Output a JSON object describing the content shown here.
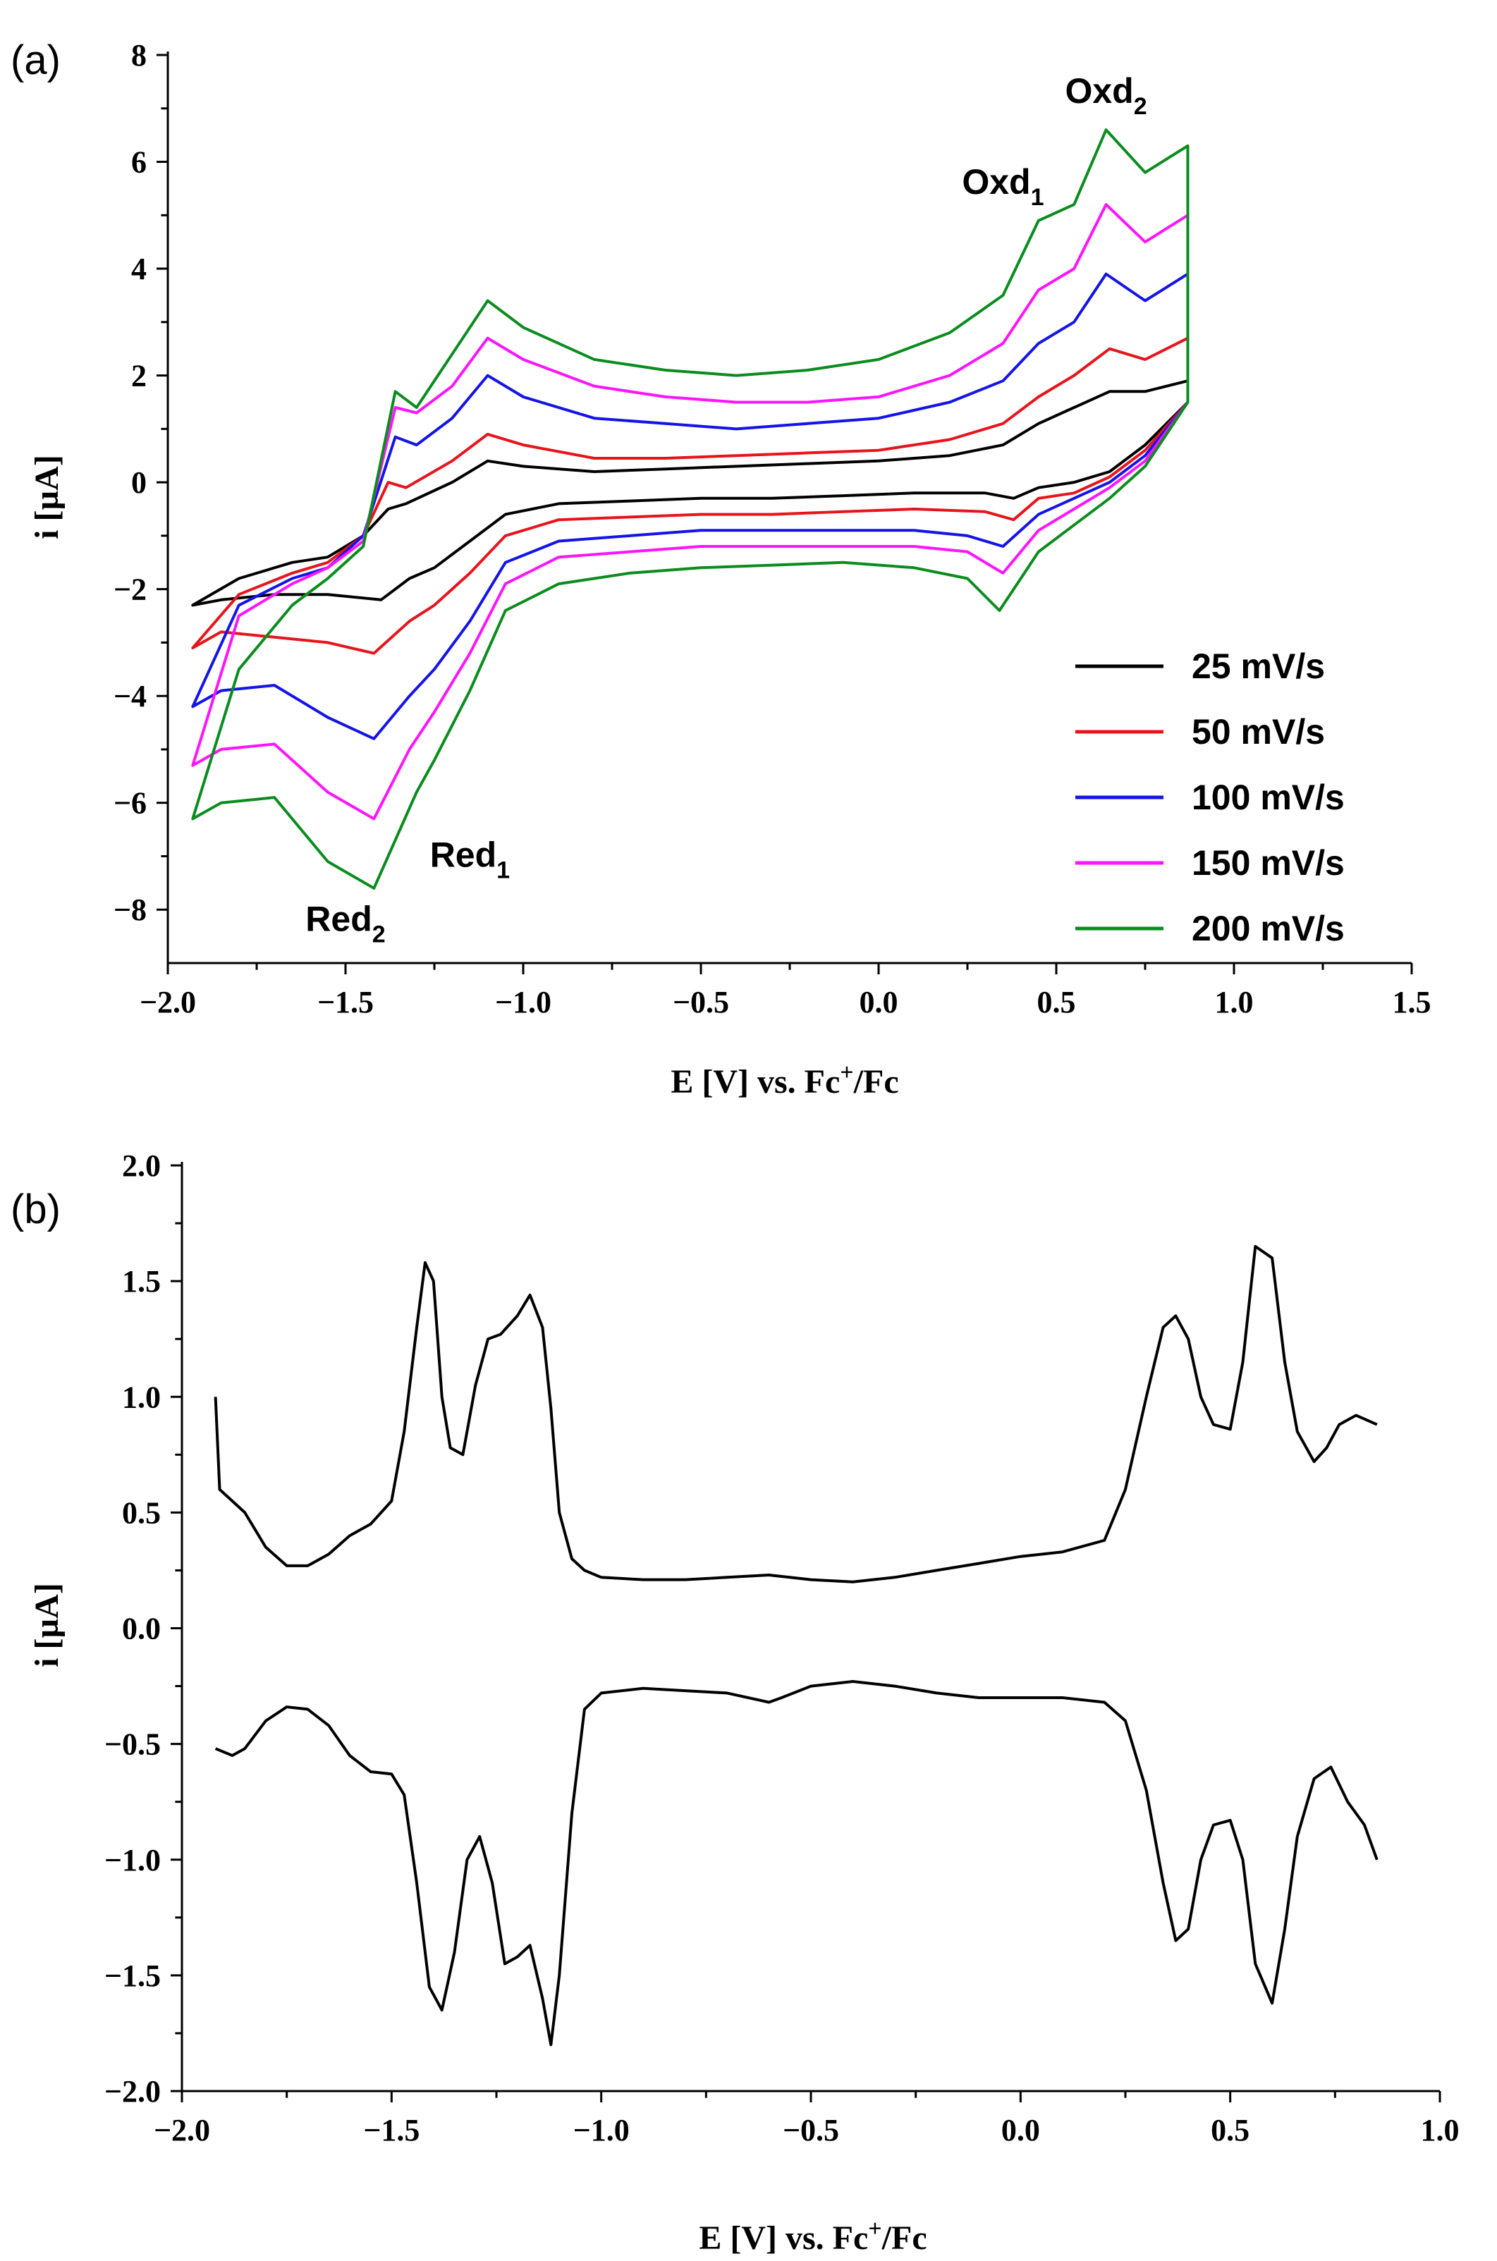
{
  "chart_data": [
    {
      "type": "line",
      "panel_label": "(a)",
      "xlabel": {
        "pre": "E [V] vs. Fc",
        "sup": "+",
        "post": "/Fc"
      },
      "ylabel": "i [µA]",
      "xlim": [
        -2.0,
        1.5
      ],
      "ylim": [
        -9,
        8
      ],
      "xticks": [
        -2.0,
        -1.5,
        -1.0,
        -0.5,
        0.0,
        0.5,
        1.0,
        1.5
      ],
      "xtick_labels": [
        "−2.0",
        "−1.5",
        "−1.0",
        "−0.5",
        "0.0",
        "0.5",
        "1.0",
        "1.5"
      ],
      "yticks": [
        -8,
        -6,
        -4,
        -2,
        0,
        2,
        4,
        6,
        8
      ],
      "ytick_labels": [
        "−8",
        "−6",
        "−4",
        "−2",
        "0",
        "2",
        "4",
        "6",
        "8"
      ],
      "legend_position": "bottom-right",
      "annotations": [
        {
          "base": "Oxd",
          "sub": "1",
          "x": 0.35,
          "y": 5.4
        },
        {
          "base": "Oxd",
          "sub": "2",
          "x": 0.64,
          "y": 7.1
        },
        {
          "base": "Red",
          "sub": "1",
          "x": -1.15,
          "y": -7.2
        },
        {
          "base": "Red",
          "sub": "2",
          "x": -1.5,
          "y": -8.4
        }
      ],
      "series": [
        {
          "name": "25 mV/s",
          "color": "#000000",
          "x": [
            -1.93,
            -1.8,
            -1.65,
            -1.55,
            -1.45,
            -1.38,
            -1.33,
            -1.2,
            -1.1,
            -1.0,
            -0.8,
            -0.6,
            -0.4,
            -0.2,
            0.0,
            0.2,
            0.35,
            0.45,
            0.55,
            0.65,
            0.75,
            0.87,
            0.87,
            0.75,
            0.65,
            0.55,
            0.45,
            0.38,
            0.3,
            0.1,
            -0.1,
            -0.3,
            -0.5,
            -0.7,
            -0.9,
            -1.05,
            -1.15,
            -1.25,
            -1.32,
            -1.4,
            -1.55,
            -1.7,
            -1.85,
            -1.93
          ],
          "y": [
            -2.3,
            -1.8,
            -1.5,
            -1.4,
            -1.0,
            -0.5,
            -0.4,
            0.0,
            0.4,
            0.3,
            0.2,
            0.25,
            0.3,
            0.35,
            0.4,
            0.5,
            0.7,
            1.1,
            1.4,
            1.7,
            1.7,
            1.9,
            1.5,
            0.7,
            0.2,
            0.0,
            -0.1,
            -0.3,
            -0.2,
            -0.2,
            -0.25,
            -0.3,
            -0.3,
            -0.35,
            -0.4,
            -0.6,
            -1.1,
            -1.6,
            -1.8,
            -2.2,
            -2.1,
            -2.1,
            -2.2,
            -2.3
          ]
        },
        {
          "name": "50 mV/s",
          "color": "#e8141c",
          "x": [
            -1.93,
            -1.8,
            -1.65,
            -1.55,
            -1.45,
            -1.38,
            -1.33,
            -1.2,
            -1.1,
            -1.0,
            -0.8,
            -0.6,
            -0.4,
            -0.2,
            0.0,
            0.2,
            0.35,
            0.45,
            0.55,
            0.65,
            0.75,
            0.87,
            0.87,
            0.75,
            0.65,
            0.55,
            0.45,
            0.38,
            0.3,
            0.1,
            -0.1,
            -0.3,
            -0.5,
            -0.7,
            -0.9,
            -1.05,
            -1.15,
            -1.25,
            -1.32,
            -1.42,
            -1.55,
            -1.7,
            -1.85,
            -1.93
          ],
          "y": [
            -3.1,
            -2.1,
            -1.7,
            -1.5,
            -1.0,
            0.0,
            -0.1,
            0.4,
            0.9,
            0.7,
            0.45,
            0.45,
            0.5,
            0.55,
            0.6,
            0.8,
            1.1,
            1.6,
            2.0,
            2.5,
            2.3,
            2.7,
            1.5,
            0.6,
            0.1,
            -0.2,
            -0.3,
            -0.7,
            -0.55,
            -0.5,
            -0.55,
            -0.6,
            -0.6,
            -0.65,
            -0.7,
            -1.0,
            -1.7,
            -2.3,
            -2.6,
            -3.2,
            -3.0,
            -2.9,
            -2.8,
            -3.1
          ]
        },
        {
          "name": "100 mV/s",
          "color": "#1414e8",
          "x": [
            -1.93,
            -1.8,
            -1.65,
            -1.55,
            -1.45,
            -1.36,
            -1.3,
            -1.2,
            -1.1,
            -1.0,
            -0.8,
            -0.6,
            -0.4,
            -0.2,
            0.0,
            0.2,
            0.35,
            0.45,
            0.55,
            0.64,
            0.75,
            0.87,
            0.87,
            0.75,
            0.65,
            0.55,
            0.45,
            0.35,
            0.25,
            0.1,
            -0.1,
            -0.3,
            -0.5,
            -0.7,
            -0.9,
            -1.05,
            -1.15,
            -1.25,
            -1.32,
            -1.42,
            -1.55,
            -1.7,
            -1.85,
            -1.93
          ],
          "y": [
            -4.2,
            -2.3,
            -1.8,
            -1.6,
            -1.0,
            0.85,
            0.7,
            1.2,
            2.0,
            1.6,
            1.2,
            1.1,
            1.0,
            1.1,
            1.2,
            1.5,
            1.9,
            2.6,
            3.0,
            3.9,
            3.4,
            3.9,
            1.5,
            0.5,
            0.0,
            -0.3,
            -0.6,
            -1.2,
            -1.0,
            -0.9,
            -0.9,
            -0.9,
            -0.9,
            -1.0,
            -1.1,
            -1.5,
            -2.6,
            -3.5,
            -4.0,
            -4.8,
            -4.4,
            -3.8,
            -3.9,
            -4.2
          ]
        },
        {
          "name": "150 mV/s",
          "color": "#ff14ff",
          "x": [
            -1.93,
            -1.8,
            -1.65,
            -1.55,
            -1.45,
            -1.36,
            -1.3,
            -1.2,
            -1.1,
            -1.0,
            -0.8,
            -0.6,
            -0.4,
            -0.2,
            0.0,
            0.2,
            0.35,
            0.45,
            0.55,
            0.64,
            0.75,
            0.87,
            0.87,
            0.75,
            0.65,
            0.55,
            0.45,
            0.35,
            0.25,
            0.1,
            -0.1,
            -0.3,
            -0.5,
            -0.7,
            -0.9,
            -1.05,
            -1.15,
            -1.25,
            -1.32,
            -1.42,
            -1.55,
            -1.7,
            -1.85,
            -1.93
          ],
          "y": [
            -5.3,
            -2.5,
            -1.9,
            -1.6,
            -1.1,
            1.4,
            1.3,
            1.8,
            2.7,
            2.3,
            1.8,
            1.6,
            1.5,
            1.5,
            1.6,
            2.0,
            2.6,
            3.6,
            4.0,
            5.2,
            4.5,
            5.0,
            1.5,
            0.4,
            -0.1,
            -0.5,
            -0.9,
            -1.7,
            -1.3,
            -1.2,
            -1.2,
            -1.2,
            -1.2,
            -1.3,
            -1.4,
            -1.9,
            -3.2,
            -4.3,
            -5.0,
            -6.3,
            -5.8,
            -4.9,
            -5.0,
            -5.3
          ]
        },
        {
          "name": "200 mV/s",
          "color": "#0a8c1e",
          "x": [
            -1.93,
            -1.8,
            -1.65,
            -1.55,
            -1.45,
            -1.36,
            -1.3,
            -1.2,
            -1.1,
            -1.0,
            -0.8,
            -0.6,
            -0.4,
            -0.2,
            0.0,
            0.2,
            0.35,
            0.45,
            0.55,
            0.64,
            0.75,
            0.87,
            0.87,
            0.75,
            0.65,
            0.55,
            0.45,
            0.34,
            0.25,
            0.1,
            -0.1,
            -0.3,
            -0.5,
            -0.7,
            -0.9,
            -1.05,
            -1.15,
            -1.25,
            -1.3,
            -1.42,
            -1.55,
            -1.7,
            -1.85,
            -1.93
          ],
          "y": [
            -6.3,
            -3.5,
            -2.3,
            -1.8,
            -1.2,
            1.7,
            1.4,
            2.4,
            3.4,
            2.9,
            2.3,
            2.1,
            2.0,
            2.1,
            2.3,
            2.8,
            3.5,
            4.9,
            5.2,
            6.6,
            5.8,
            6.3,
            1.5,
            0.3,
            -0.3,
            -0.8,
            -1.3,
            -2.4,
            -1.8,
            -1.6,
            -1.5,
            -1.55,
            -1.6,
            -1.7,
            -1.9,
            -2.4,
            -3.9,
            -5.2,
            -5.8,
            -7.6,
            -7.1,
            -5.9,
            -6.0,
            -6.3
          ]
        }
      ]
    },
    {
      "type": "line",
      "panel_label": "(b)",
      "xlabel": {
        "pre": "E [V] vs. Fc",
        "sup": "+",
        "post": "/Fc"
      },
      "ylabel": "i [µA]",
      "xlim": [
        -2.0,
        1.0
      ],
      "ylim": [
        -2.0,
        2.0
      ],
      "xticks": [
        -2.0,
        -1.5,
        -1.0,
        -0.5,
        0.0,
        0.5,
        1.0
      ],
      "xtick_labels": [
        "−2.0",
        "−1.5",
        "−1.0",
        "−0.5",
        "0.0",
        "0.5",
        "1.0"
      ],
      "yticks": [
        -2.0,
        -1.5,
        -1.0,
        -0.5,
        0.0,
        0.5,
        1.0,
        1.5,
        2.0
      ],
      "ytick_labels": [
        "−2.0",
        "−1.5",
        "−1.0",
        "−0.5",
        "0.0",
        "0.5",
        "1.0",
        "1.5",
        "2.0"
      ],
      "series": [
        {
          "color": "#000000",
          "x": [
            -1.92,
            -1.91,
            -1.88,
            -1.85,
            -1.8,
            -1.75,
            -1.7,
            -1.65,
            -1.6,
            -1.55,
            -1.5,
            -1.47,
            -1.44,
            -1.42,
            -1.4,
            -1.38,
            -1.36,
            -1.33,
            -1.3,
            -1.27,
            -1.24,
            -1.2,
            -1.17,
            -1.14,
            -1.12,
            -1.1,
            -1.07,
            -1.04,
            -1.0,
            -0.9,
            -0.8,
            -0.7,
            -0.6,
            -0.5,
            -0.4,
            -0.3,
            -0.2,
            -0.1,
            0.0,
            0.1,
            0.2,
            0.25,
            0.3,
            0.34,
            0.37,
            0.4,
            0.43,
            0.46,
            0.5,
            0.53,
            0.56,
            0.6,
            0.63,
            0.66,
            0.7,
            0.73,
            0.76,
            0.8,
            0.85
          ],
          "y": [
            1.0,
            0.6,
            0.55,
            0.5,
            0.35,
            0.27,
            0.27,
            0.32,
            0.4,
            0.45,
            0.55,
            0.85,
            1.3,
            1.58,
            1.5,
            1.0,
            0.78,
            0.75,
            1.05,
            1.25,
            1.27,
            1.35,
            1.44,
            1.3,
            0.95,
            0.5,
            0.3,
            0.25,
            0.22,
            0.21,
            0.21,
            0.22,
            0.23,
            0.21,
            0.2,
            0.22,
            0.25,
            0.28,
            0.31,
            0.33,
            0.38,
            0.6,
            1.0,
            1.3,
            1.35,
            1.25,
            1.0,
            0.88,
            0.86,
            1.15,
            1.65,
            1.6,
            1.15,
            0.85,
            0.72,
            0.78,
            0.88,
            0.92,
            0.88
          ]
        },
        {
          "color": "#000000",
          "x": [
            -1.92,
            -1.88,
            -1.85,
            -1.8,
            -1.75,
            -1.7,
            -1.65,
            -1.6,
            -1.55,
            -1.5,
            -1.47,
            -1.44,
            -1.41,
            -1.38,
            -1.35,
            -1.32,
            -1.29,
            -1.26,
            -1.23,
            -1.2,
            -1.17,
            -1.14,
            -1.12,
            -1.1,
            -1.07,
            -1.04,
            -1.0,
            -0.9,
            -0.8,
            -0.7,
            -0.6,
            -0.57,
            -0.5,
            -0.4,
            -0.3,
            -0.2,
            -0.1,
            0.0,
            0.1,
            0.2,
            0.25,
            0.3,
            0.34,
            0.37,
            0.4,
            0.43,
            0.46,
            0.5,
            0.53,
            0.56,
            0.6,
            0.63,
            0.66,
            0.7,
            0.74,
            0.78,
            0.82,
            0.85
          ],
          "y": [
            -0.52,
            -0.55,
            -0.52,
            -0.4,
            -0.34,
            -0.35,
            -0.42,
            -0.55,
            -0.62,
            -0.63,
            -0.72,
            -1.1,
            -1.55,
            -1.65,
            -1.4,
            -1.0,
            -0.9,
            -1.1,
            -1.45,
            -1.42,
            -1.37,
            -1.6,
            -1.8,
            -1.5,
            -0.8,
            -0.35,
            -0.28,
            -0.26,
            -0.27,
            -0.28,
            -0.32,
            -0.3,
            -0.25,
            -0.23,
            -0.25,
            -0.28,
            -0.3,
            -0.3,
            -0.3,
            -0.32,
            -0.4,
            -0.7,
            -1.1,
            -1.35,
            -1.3,
            -1.0,
            -0.85,
            -0.83,
            -1.0,
            -1.45,
            -1.62,
            -1.3,
            -0.9,
            -0.65,
            -0.6,
            -0.75,
            -0.85,
            -1.0
          ]
        }
      ]
    }
  ]
}
